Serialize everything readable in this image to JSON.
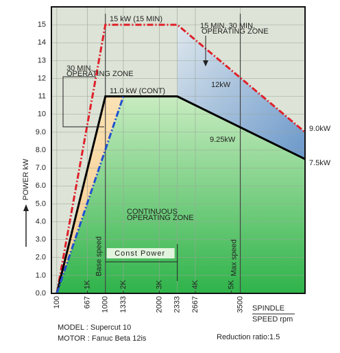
{
  "chart_data": {
    "type": "line",
    "xlim": [
      0,
      4700
    ],
    "ylim": [
      0,
      16
    ],
    "xticks": [
      100,
      667,
      1000,
      1333,
      2000,
      2333,
      2667,
      3500
    ],
    "motor_ticks": [
      {
        "value": 667,
        "label": "1K"
      },
      {
        "value": 1333,
        "label": "2K"
      },
      {
        "value": 2000,
        "label": "3K"
      },
      {
        "value": 2667,
        "label": "4K"
      },
      {
        "value": 3333,
        "label": "5K"
      }
    ],
    "yticks": [
      {
        "value": 0,
        "label": "0.0"
      },
      {
        "value": 1,
        "label": "1.0"
      },
      {
        "value": 2,
        "label": "2.0"
      },
      {
        "value": 3,
        "label": "3.0"
      },
      {
        "value": 4,
        "label": "4.0"
      },
      {
        "value": 5,
        "label": "5.0"
      },
      {
        "value": 6,
        "label": "6.0"
      },
      {
        "value": 7,
        "label": "7.0"
      },
      {
        "value": 8,
        "label": "8.0"
      },
      {
        "value": 9,
        "label": "9.0"
      },
      10,
      11,
      12,
      13,
      14,
      15
    ],
    "grid": true,
    "y_label": "POWER kW",
    "x_label": [
      "SPINDLE",
      "SPEED rpm"
    ],
    "series": [
      {
        "x": [
          100,
          1000,
          2333,
          4700
        ],
        "values": [
          0,
          15,
          15,
          9.0
        ],
        "color": "#e0202a",
        "style": "dashdot"
      },
      {
        "x": [
          100,
          1000,
          2333,
          4700
        ],
        "values": [
          0,
          11,
          11,
          7.5
        ],
        "color": "#000000",
        "style": "solid"
      },
      {
        "x": [
          100,
          1333
        ],
        "values": [
          0,
          11
        ],
        "color": "#2050d0",
        "style": "dashdot"
      }
    ],
    "reference_lines": [
      {
        "label": "Base speed",
        "value": 1000
      },
      {
        "label": "Max speed",
        "value": 3500
      }
    ],
    "const_power": {
      "label": "Const Power",
      "range": [
        1000,
        2333
      ]
    },
    "annotations": [
      "15 kW (15 MIN)",
      "15 MIN. 30 MIN.",
      "OPERATING ZONE",
      "30 MIN.",
      "OPERATING ZONE",
      "11.0 kW (CONT)",
      "12kW",
      "9.25kW",
      "9.0kW",
      "7.5kW",
      "CONTINUOUS",
      "OPERATING ZONE"
    ],
    "footer": [
      "MODEL : Supercut 10",
      "MOTOR : Fanuc Beta 12is",
      "Reduction ratio:1.5"
    ]
  }
}
